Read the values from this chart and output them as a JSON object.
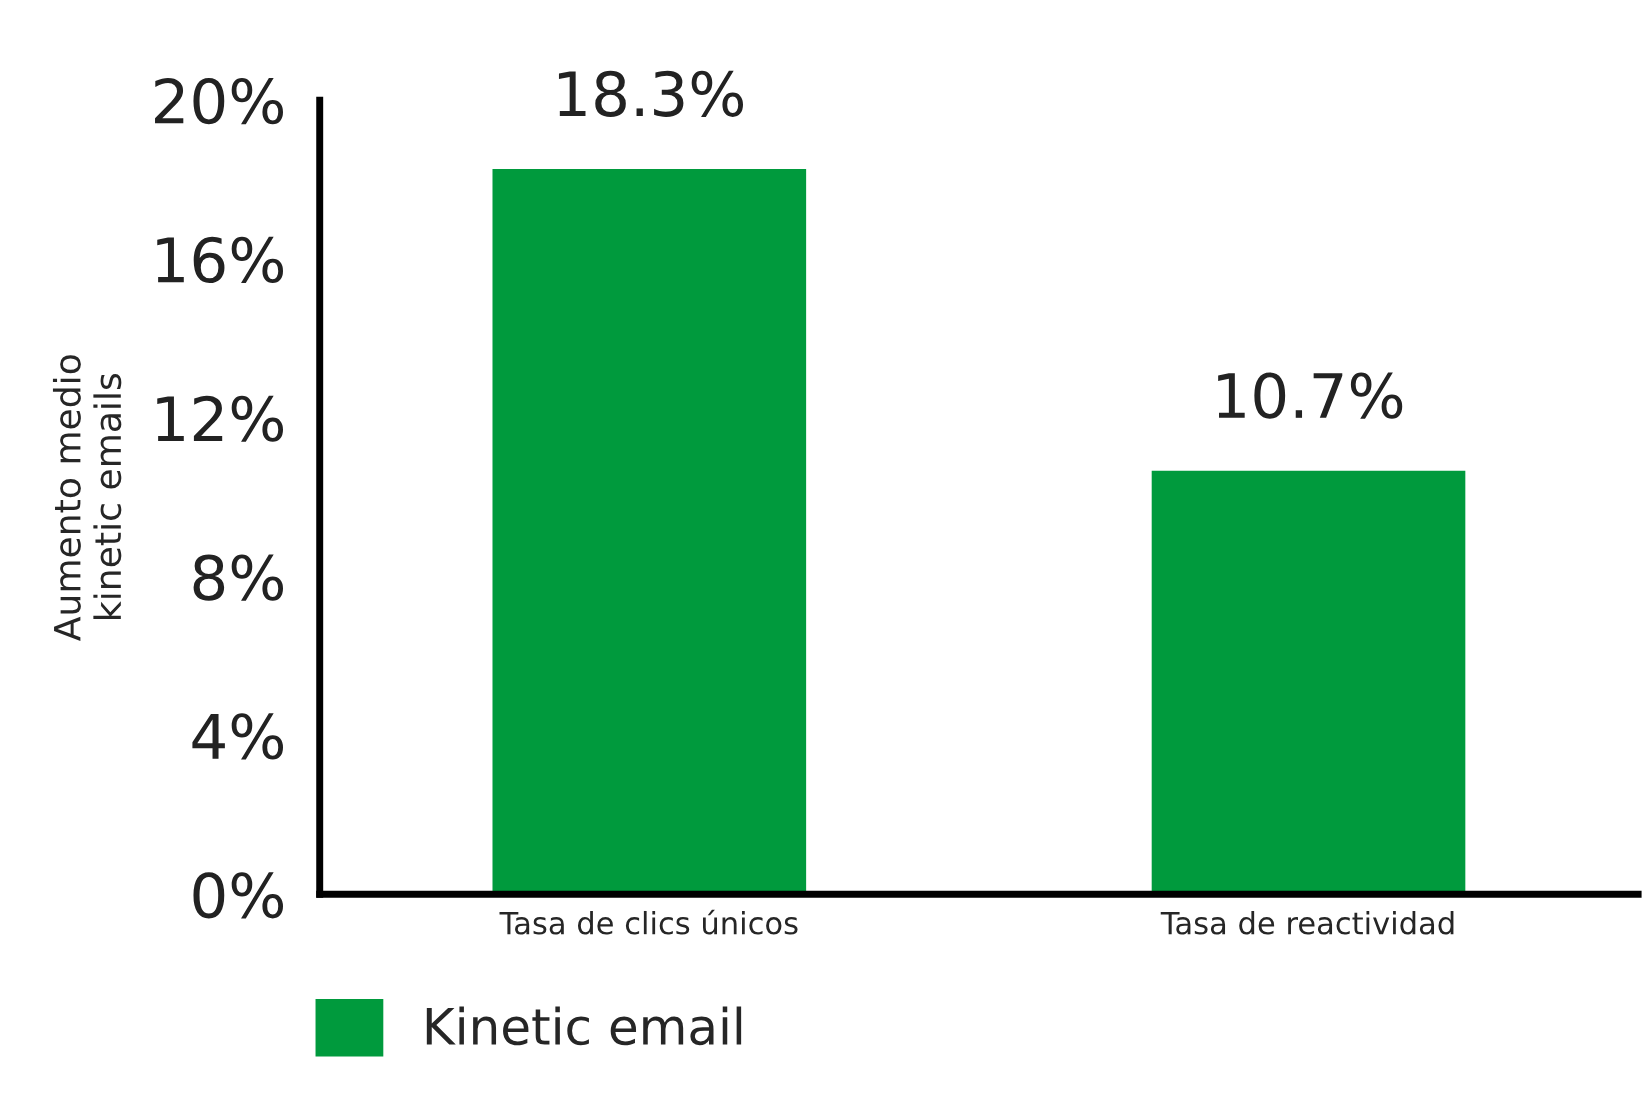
{
  "chart_data": {
    "type": "bar",
    "ylabel": "Aumento medio\nkinetic emails",
    "categories": [
      "Tasa de clics únicos",
      "Tasa de reactividad"
    ],
    "series": [
      {
        "name": "Kinetic email",
        "color": "#009a3d",
        "values": [
          18.3,
          10.7
        ]
      }
    ],
    "ylim": [
      0,
      20
    ],
    "yticks": [
      {
        "value": 0,
        "label": "0%"
      },
      {
        "value": 4,
        "label": "4%"
      },
      {
        "value": 8,
        "label": "8%"
      },
      {
        "value": 12,
        "label": "12%"
      },
      {
        "value": 16,
        "label": "16%"
      },
      {
        "value": 20,
        "label": "20%"
      }
    ],
    "value_labels": [
      "18.3%",
      "10.7%"
    ],
    "grid": false,
    "legend": "bottom left"
  }
}
